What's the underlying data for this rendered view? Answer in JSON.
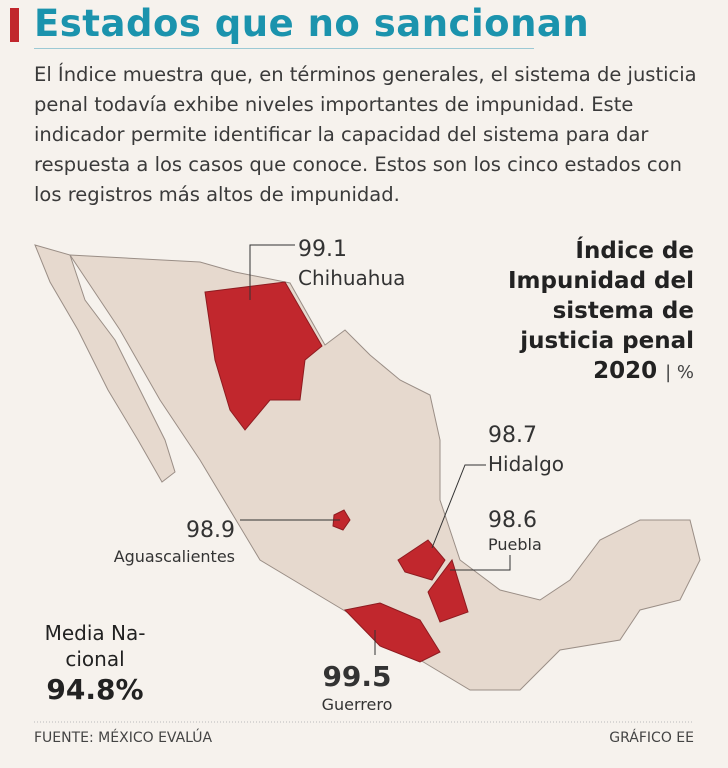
{
  "header": {
    "title": "Estados que no sancionan",
    "intro": "El Índice muestra que, en términos generales, el sistema de justicia penal todavía exhibe niveles importantes de impunidad. Este indicador permite identificar la capacidad del sistema para dar respuesta a los casos que conoce. Estos son los cinco estados con los registros más altos de impunidad."
  },
  "legend": {
    "title": "Índice de Impunidad del sistema de justicia penal",
    "year": "2020",
    "unit": "| %"
  },
  "states": [
    {
      "name": "Chihuahua",
      "value": "99.1"
    },
    {
      "name": "Hidalgo",
      "value": "98.7"
    },
    {
      "name": "Aguascalientes",
      "value": "98.9"
    },
    {
      "name": "Puebla",
      "value": "98.6"
    },
    {
      "name": "Guerrero",
      "value": "99.5"
    }
  ],
  "national": {
    "label": "Media Na-cional",
    "value": "94.8%"
  },
  "footer": {
    "source": "FUENTE: MÉXICO EVALÚA",
    "credit": "GRÁFICO EE"
  }
}
